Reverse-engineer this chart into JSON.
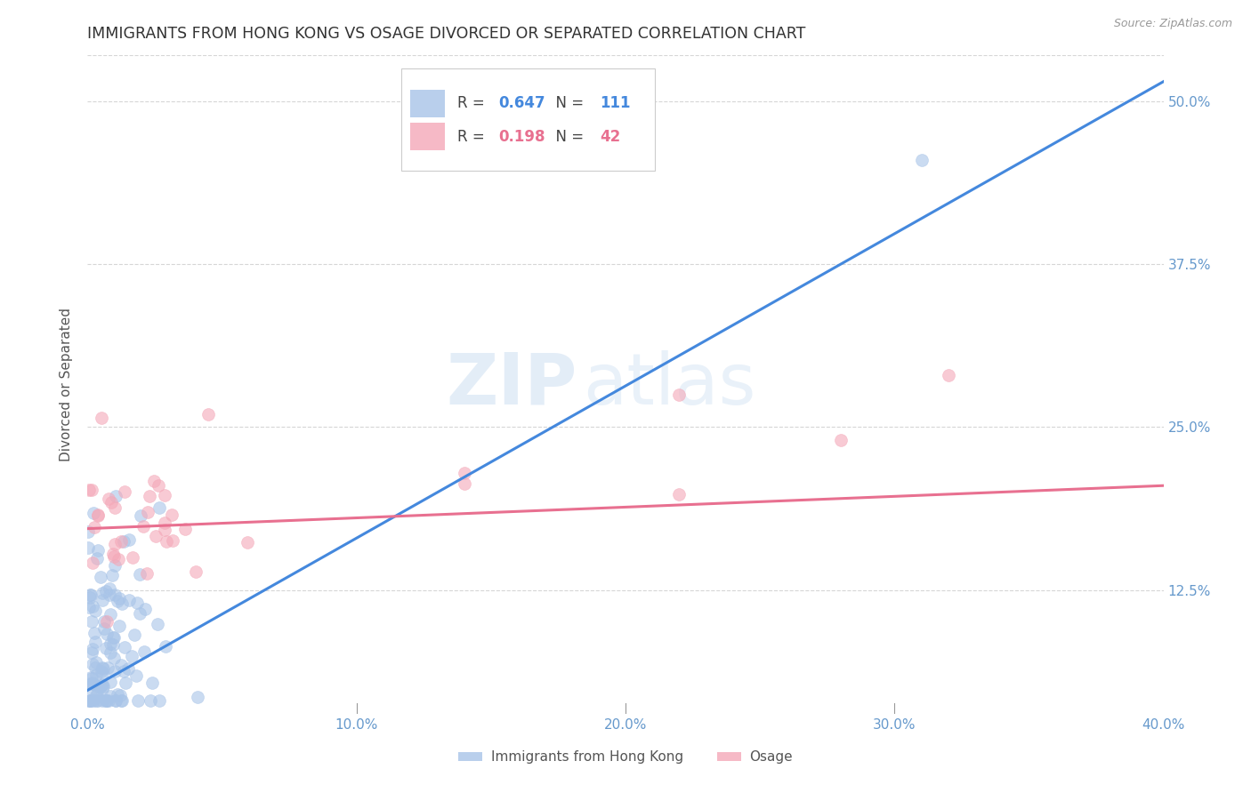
{
  "title": "IMMIGRANTS FROM HONG KONG VS OSAGE DIVORCED OR SEPARATED CORRELATION CHART",
  "source": "Source: ZipAtlas.com",
  "ylabel": "Divorced or Separated",
  "xlim": [
    0.0,
    0.4
  ],
  "ylim": [
    0.03,
    0.535
  ],
  "yticks": [
    0.125,
    0.25,
    0.375,
    0.5
  ],
  "ytick_labels": [
    "12.5%",
    "25.0%",
    "37.5%",
    "50.0%"
  ],
  "xticks": [
    0.0,
    0.1,
    0.2,
    0.3,
    0.4
  ],
  "xtick_labels": [
    "0.0%",
    "10.0%",
    "20.0%",
    "30.0%",
    "40.0%"
  ],
  "blue_R": 0.647,
  "blue_N": 111,
  "pink_R": 0.198,
  "pink_N": 42,
  "blue_color": "#A8C4E8",
  "pink_color": "#F4A8B8",
  "blue_line_color": "#4488DD",
  "pink_line_color": "#E87090",
  "legend_label_blue": "Immigrants from Hong Kong",
  "legend_label_pink": "Osage",
  "watermark_zip": "ZIP",
  "watermark_atlas": "atlas",
  "background_color": "#FFFFFF",
  "grid_color": "#CCCCCC",
  "title_color": "#333333",
  "axis_label_color": "#6699CC",
  "blue_line_x0": 0.0,
  "blue_line_y0": 0.048,
  "blue_line_x1": 0.4,
  "blue_line_y1": 0.515,
  "pink_line_x0": 0.0,
  "pink_line_y0": 0.172,
  "pink_line_x1": 0.4,
  "pink_line_y1": 0.205
}
